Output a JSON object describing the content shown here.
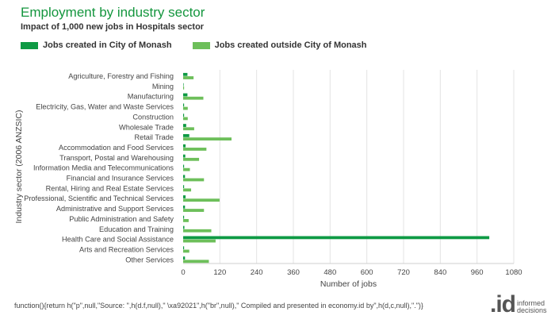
{
  "header": {
    "title": "Employment by industry sector",
    "subtitle": "Impact of 1,000 new jobs in Hospitals sector"
  },
  "footer": {
    "text": "function(){return h(\"p\",null,\"Source: \",h(d.f,null),\" \\xa92021\",h(\"br\",null),\" Compiled and presented in economy.id by\",h(d,c,null),\".\")}"
  },
  "logo": {
    "mark": ".id",
    "line1": "informed",
    "line2": "decisions"
  },
  "colors": {
    "inside": "#0e9a44",
    "outside": "#6dbf5a",
    "grid": "#e3e3e3",
    "title": "#14963e"
  },
  "chart_data": {
    "type": "bar",
    "orientation": "horizontal",
    "title": "Employment by industry sector",
    "subtitle": "Impact of 1,000 new jobs in Hospitals sector",
    "xlabel": "Number of jobs",
    "ylabel": "Industry sector (2006 ANZSIC)",
    "xlim": [
      0,
      1080
    ],
    "xticks": [
      0,
      120,
      240,
      360,
      480,
      600,
      720,
      840,
      960,
      1080
    ],
    "legend_position": "top-left",
    "grid": true,
    "categories": [
      "Agriculture, Forestry and Fishing",
      "Mining",
      "Manufacturing",
      "Electricity, Gas, Water and Waste Services",
      "Construction",
      "Wholesale Trade",
      "Retail Trade",
      "Accommodation and Food Services",
      "Transport, Postal and Warehousing",
      "Information Media and Telecommunications",
      "Financial and Insurance Services",
      "Rental, Hiring and Real Estate Services",
      "Professional, Scientific and Technical Services",
      "Administrative and Support Services",
      "Public Administration and Safety",
      "Education and Training",
      "Health Care and Social Assistance",
      "Arts and Recreation Services",
      "Other Services"
    ],
    "series": [
      {
        "name": "Jobs created in City of Monash",
        "values": [
          14,
          1,
          14,
          3,
          3,
          10,
          20,
          8,
          7,
          3,
          6,
          3,
          8,
          6,
          3,
          4,
          1000,
          3,
          6
        ]
      },
      {
        "name": "Jobs created outside City of Monash",
        "values": [
          34,
          3,
          66,
          15,
          15,
          36,
          158,
          76,
          52,
          22,
          68,
          26,
          119,
          68,
          18,
          92,
          106,
          20,
          84
        ]
      }
    ]
  }
}
